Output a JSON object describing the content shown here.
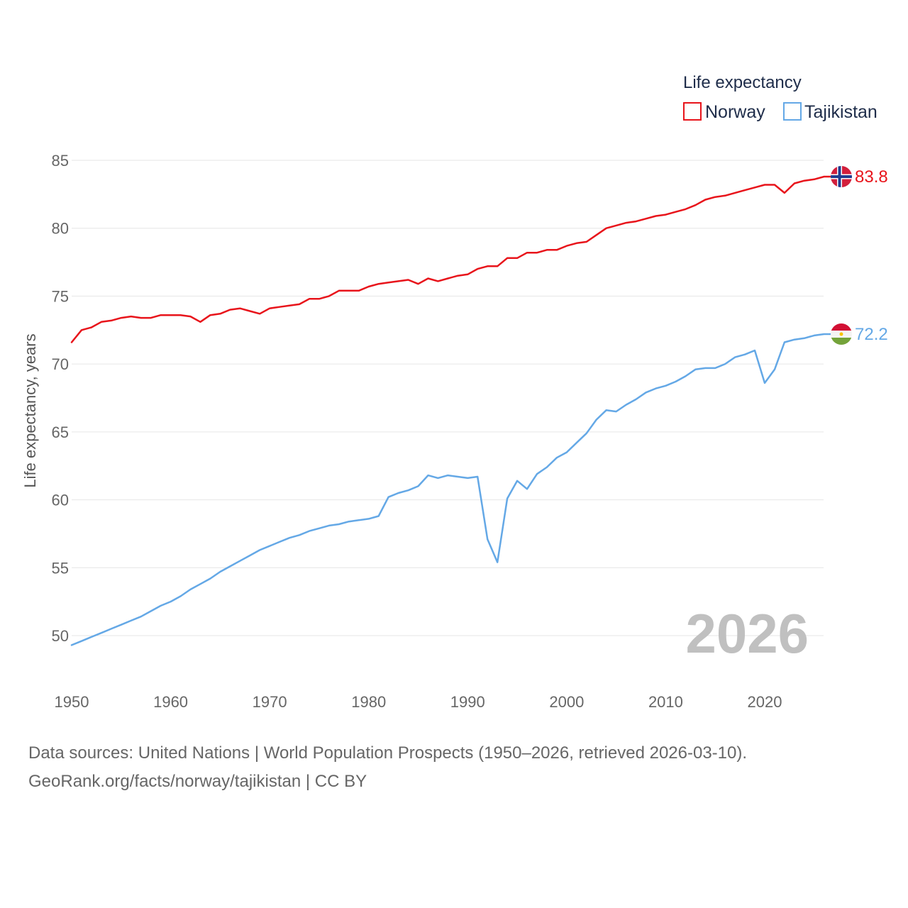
{
  "chart_data": {
    "type": "line",
    "legend_title": "Life expectancy",
    "ylabel": "Life expectancy, years",
    "xlim": [
      1950,
      2026
    ],
    "ylim": [
      47,
      88
    ],
    "yticks": [
      50,
      55,
      60,
      65,
      70,
      75,
      80,
      85
    ],
    "xticks": [
      1950,
      1960,
      1970,
      1980,
      1990,
      2000,
      2010,
      2020
    ],
    "current_year": "2026",
    "legend_position": "top-right",
    "series": [
      {
        "name": "Norway",
        "color": "#e8141b",
        "end_label": "83.8",
        "flag_icon": "norway-flag-icon",
        "x": [
          1950,
          1951,
          1952,
          1953,
          1954,
          1955,
          1956,
          1957,
          1958,
          1959,
          1960,
          1961,
          1962,
          1963,
          1964,
          1965,
          1966,
          1967,
          1968,
          1969,
          1970,
          1971,
          1972,
          1973,
          1974,
          1975,
          1976,
          1977,
          1978,
          1979,
          1980,
          1981,
          1982,
          1983,
          1984,
          1985,
          1986,
          1987,
          1988,
          1989,
          1990,
          1991,
          1992,
          1993,
          1994,
          1995,
          1996,
          1997,
          1998,
          1999,
          2000,
          2001,
          2002,
          2003,
          2004,
          2005,
          2006,
          2007,
          2008,
          2009,
          2010,
          2011,
          2012,
          2013,
          2014,
          2015,
          2016,
          2017,
          2018,
          2019,
          2020,
          2021,
          2022,
          2023,
          2024,
          2025,
          2026
        ],
        "values": [
          71.6,
          72.5,
          72.7,
          73.1,
          73.2,
          73.4,
          73.5,
          73.4,
          73.4,
          73.6,
          73.6,
          73.6,
          73.5,
          73.1,
          73.6,
          73.7,
          74.0,
          74.1,
          73.9,
          73.7,
          74.1,
          74.2,
          74.3,
          74.4,
          74.8,
          74.8,
          75.0,
          75.4,
          75.4,
          75.4,
          75.7,
          75.9,
          76.0,
          76.1,
          76.2,
          75.9,
          76.3,
          76.1,
          76.3,
          76.5,
          76.6,
          77.0,
          77.2,
          77.2,
          77.8,
          77.8,
          78.2,
          78.2,
          78.4,
          78.4,
          78.7,
          78.9,
          79.0,
          79.5,
          80.0,
          80.2,
          80.4,
          80.5,
          80.7,
          80.9,
          81.0,
          81.2,
          81.4,
          81.7,
          82.1,
          82.3,
          82.4,
          82.6,
          82.8,
          83.0,
          83.2,
          83.2,
          82.6,
          83.3,
          83.5,
          83.6,
          83.8
        ]
      },
      {
        "name": "Tajikistan",
        "color": "#64a8e6",
        "end_label": "72.2",
        "flag_icon": "tajikistan-flag-icon",
        "x": [
          1950,
          1951,
          1952,
          1953,
          1954,
          1955,
          1956,
          1957,
          1958,
          1959,
          1960,
          1961,
          1962,
          1963,
          1964,
          1965,
          1966,
          1967,
          1968,
          1969,
          1970,
          1971,
          1972,
          1973,
          1974,
          1975,
          1976,
          1977,
          1978,
          1979,
          1980,
          1981,
          1982,
          1983,
          1984,
          1985,
          1986,
          1987,
          1988,
          1989,
          1990,
          1991,
          1992,
          1993,
          1994,
          1995,
          1996,
          1997,
          1998,
          1999,
          2000,
          2001,
          2002,
          2003,
          2004,
          2005,
          2006,
          2007,
          2008,
          2009,
          2010,
          2011,
          2012,
          2013,
          2014,
          2015,
          2016,
          2017,
          2018,
          2019,
          2020,
          2021,
          2022,
          2023,
          2024,
          2025,
          2026
        ],
        "values": [
          49.3,
          49.6,
          49.9,
          50.2,
          50.5,
          50.8,
          51.1,
          51.4,
          51.8,
          52.2,
          52.5,
          52.9,
          53.4,
          53.8,
          54.2,
          54.7,
          55.1,
          55.5,
          55.9,
          56.3,
          56.6,
          56.9,
          57.2,
          57.4,
          57.7,
          57.9,
          58.1,
          58.2,
          58.4,
          58.5,
          58.6,
          58.8,
          60.2,
          60.5,
          60.7,
          61.0,
          61.8,
          61.6,
          61.8,
          61.7,
          61.6,
          61.7,
          57.1,
          55.4,
          60.1,
          61.4,
          60.8,
          61.9,
          62.4,
          63.1,
          63.5,
          64.2,
          64.9,
          65.9,
          66.6,
          66.5,
          67.0,
          67.4,
          67.9,
          68.2,
          68.4,
          68.7,
          69.1,
          69.6,
          69.7,
          69.7,
          70.0,
          70.5,
          70.7,
          71.0,
          68.6,
          69.6,
          71.6,
          71.8,
          71.9,
          72.1,
          72.2
        ]
      }
    ]
  },
  "footer": {
    "source_line": "Data sources: United Nations | World Population Prospects (1950–2026, retrieved 2026-03-10).",
    "url_line": "GeoRank.org/facts/norway/tajikistan | CC BY"
  }
}
